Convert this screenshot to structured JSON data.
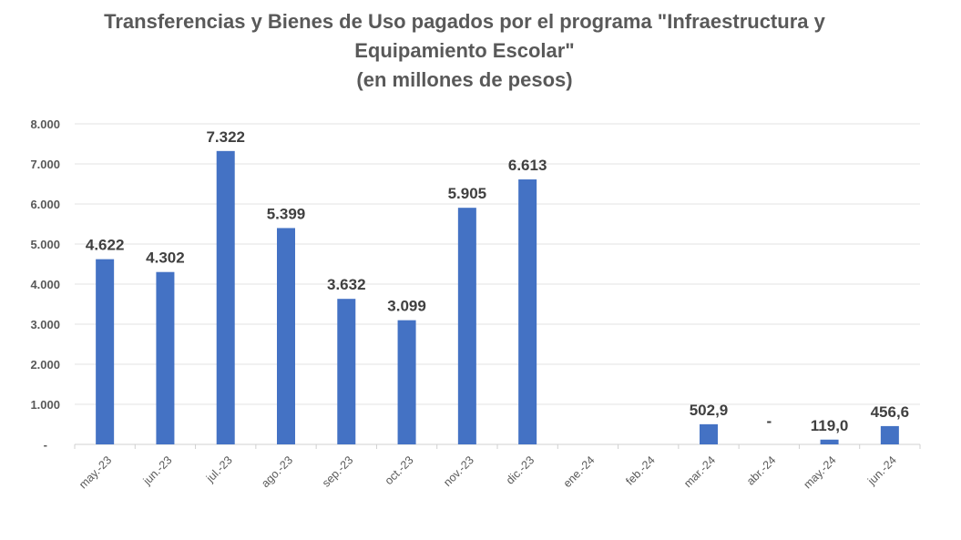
{
  "chart_data": {
    "type": "bar",
    "title": [
      "Transferencias y Bienes de Uso pagados por el programa \"Infraestructura y",
      "Equipamiento Escolar\"",
      "(en millones de pesos)"
    ],
    "categories": [
      "may.-23",
      "jun.-23",
      "jul.-23",
      "ago.-23",
      "sep.-23",
      "oct.-23",
      "nov.-23",
      "dic.-23",
      "ene.-24",
      "feb.-24",
      "mar.-24",
      "abr.-24",
      "may.-24",
      "jun.-24"
    ],
    "values": [
      4622,
      4302,
      7322,
      5399,
      3632,
      3099,
      5905,
      6613,
      null,
      null,
      502.9,
      0,
      119.0,
      456.6
    ],
    "data_labels": [
      "4.622",
      "4.302",
      "7.322",
      "5.399",
      "3.632",
      "3.099",
      "5.905",
      "6.613",
      "",
      "",
      "502,9",
      "-",
      "119,0",
      "456,6"
    ],
    "yticks": [
      {
        "value": 0,
        "label": "-"
      },
      {
        "value": 1000,
        "label": "1.000"
      },
      {
        "value": 2000,
        "label": "2.000"
      },
      {
        "value": 3000,
        "label": "3.000"
      },
      {
        "value": 4000,
        "label": "4.000"
      },
      {
        "value": 5000,
        "label": "5.000"
      },
      {
        "value": 6000,
        "label": "6.000"
      },
      {
        "value": 7000,
        "label": "7.000"
      },
      {
        "value": 8000,
        "label": "8.000"
      }
    ],
    "ylim": [
      0,
      8000
    ],
    "xlabel": "",
    "ylabel": "",
    "grid": true,
    "legend": "none",
    "bar_color": "#4472C4"
  }
}
